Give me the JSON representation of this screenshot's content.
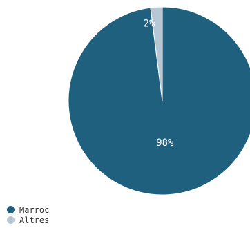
{
  "chart_data": {
    "type": "pie",
    "series": [
      {
        "name": "Marroc",
        "value": 98,
        "label": "98%",
        "color": "#20607f"
      },
      {
        "name": "Altres",
        "value": 2,
        "label": "2%",
        "color": "#b8c7d6"
      }
    ],
    "label_color": "#ffffff",
    "legend": "bottom-left"
  }
}
